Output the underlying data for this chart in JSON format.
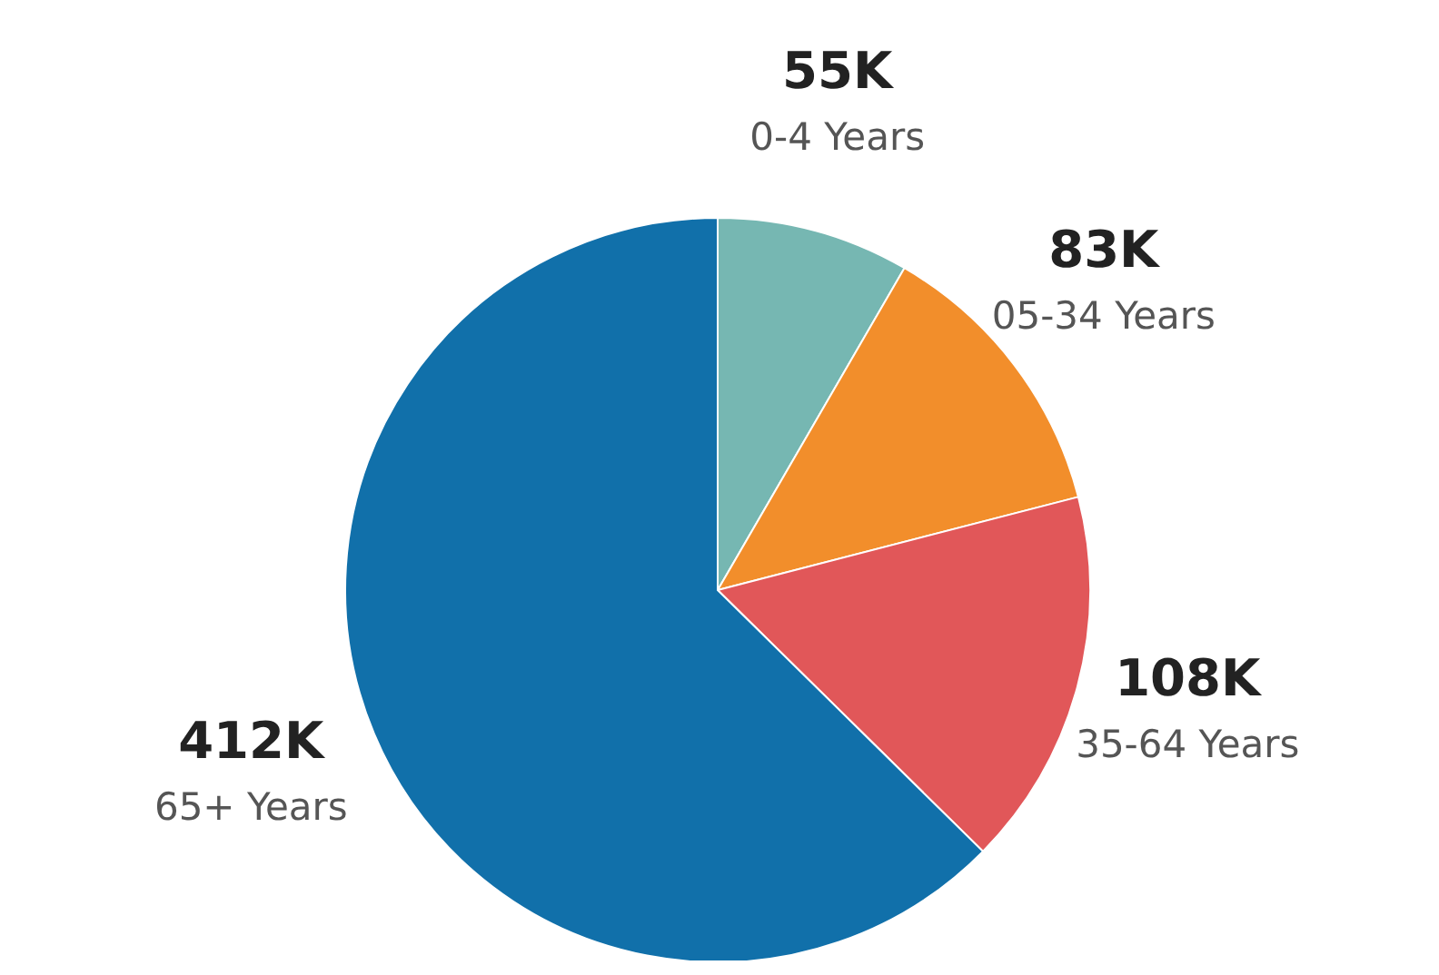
{
  "chart_data": {
    "type": "pie",
    "categories": [
      "0-4 Years",
      "05-34 Years",
      "35-64 Years",
      "65+ Years"
    ],
    "values": [
      55,
      83,
      108,
      412
    ],
    "value_labels": [
      "55K",
      "83K",
      "108K",
      "412K"
    ],
    "colors": [
      "#76b7b2",
      "#f28e2b",
      "#e15759",
      "#1170aa"
    ]
  }
}
